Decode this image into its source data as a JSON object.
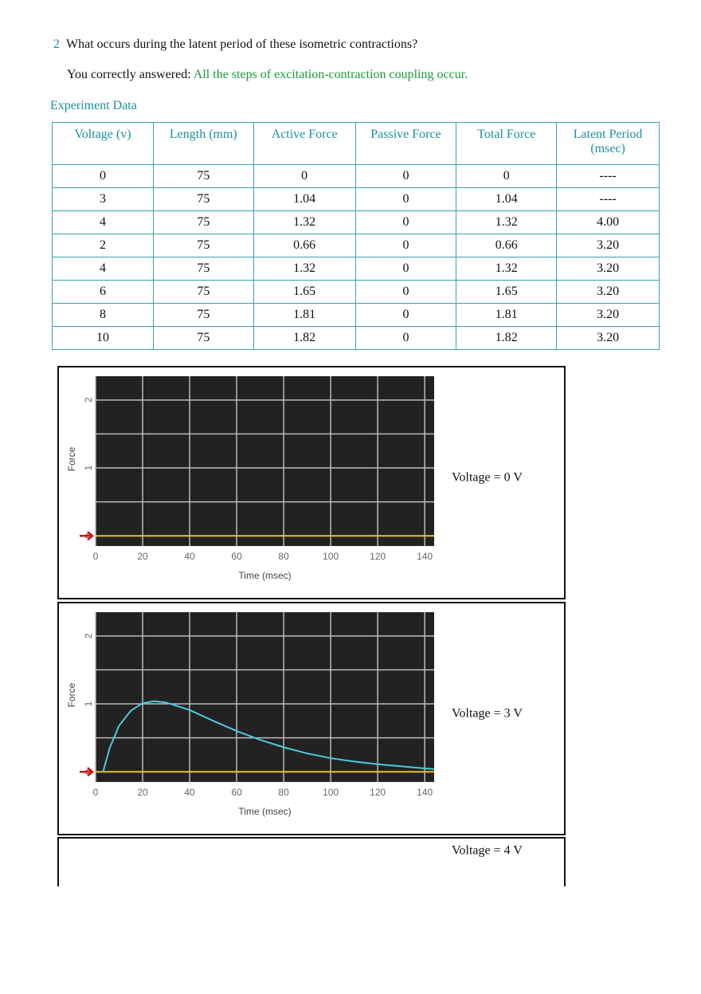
{
  "question": {
    "number": "2",
    "text": "What occurs during the latent period of these isometric contractions?"
  },
  "answer": {
    "prefix": "You correctly answered:",
    "text": "All the steps of excitation-contraction coupling occur."
  },
  "section_title": "Experiment Data",
  "table": {
    "headers": [
      "Voltage (v)",
      "Length (mm)",
      "Active Force",
      "Passive Force",
      "Total Force",
      "Latent Period (msec)"
    ],
    "rows": [
      [
        "0",
        "75",
        "0",
        "0",
        "0",
        "----"
      ],
      [
        "3",
        "75",
        "1.04",
        "0",
        "1.04",
        "----"
      ],
      [
        "4",
        "75",
        "1.32",
        "0",
        "1.32",
        "4.00"
      ],
      [
        "2",
        "75",
        "0.66",
        "0",
        "0.66",
        "3.20"
      ],
      [
        "4",
        "75",
        "1.32",
        "0",
        "1.32",
        "3.20"
      ],
      [
        "6",
        "75",
        "1.65",
        "0",
        "1.65",
        "3.20"
      ],
      [
        "8",
        "75",
        "1.81",
        "0",
        "1.81",
        "3.20"
      ],
      [
        "10",
        "75",
        "1.82",
        "0",
        "1.82",
        "3.20"
      ]
    ]
  },
  "charts": [
    {
      "type": "line",
      "caption": "Voltage = 0 V",
      "x_label": "Time (msec)",
      "y_label": "Force",
      "xlim": [
        0,
        144
      ],
      "xticks": [
        0,
        20,
        40,
        60,
        80,
        100,
        120,
        140
      ],
      "ylim": [
        -0.15,
        2.35
      ],
      "yticks": [
        0,
        1,
        2
      ],
      "minor_yticks": [
        0.5,
        1.5
      ],
      "grid": true,
      "series": [
        {
          "color": "#e8c21a",
          "x": [
            0,
            144
          ],
          "values": [
            0,
            0
          ]
        }
      ]
    },
    {
      "type": "line",
      "caption": "Voltage = 3 V",
      "x_label": "Time (msec)",
      "y_label": "Force",
      "xlim": [
        0,
        144
      ],
      "xticks": [
        0,
        20,
        40,
        60,
        80,
        100,
        120,
        140
      ],
      "ylim": [
        -0.15,
        2.35
      ],
      "yticks": [
        0,
        1,
        2
      ],
      "minor_yticks": [
        0.5,
        1.5
      ],
      "grid": true,
      "series": [
        {
          "color": "#e8c21a",
          "x": [
            0,
            144
          ],
          "values": [
            0,
            0
          ]
        },
        {
          "color": "#4fc8e0",
          "x": [
            3.2,
            6,
            10,
            15,
            20,
            25,
            30,
            40,
            50,
            60,
            70,
            80,
            90,
            100,
            110,
            120,
            130,
            140,
            144
          ],
          "values": [
            0,
            0.35,
            0.68,
            0.9,
            1.01,
            1.04,
            1.02,
            0.91,
            0.75,
            0.6,
            0.47,
            0.36,
            0.27,
            0.2,
            0.15,
            0.11,
            0.08,
            0.05,
            0.04
          ]
        }
      ]
    },
    {
      "caption": "Voltage = 4 V"
    }
  ]
}
